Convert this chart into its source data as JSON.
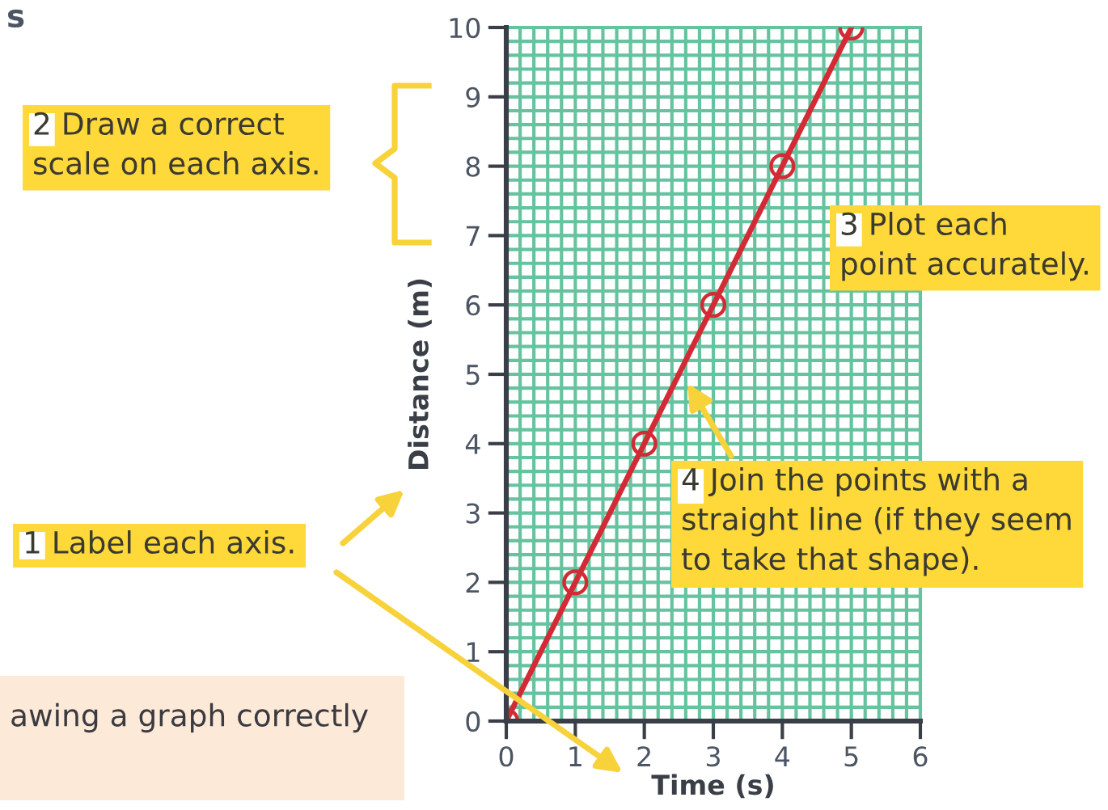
{
  "chart_data": {
    "type": "line",
    "xlabel": "Time (s)",
    "ylabel": "Distance (m)",
    "x": [
      0,
      1,
      2,
      3,
      4,
      5
    ],
    "series": [
      {
        "color": "#d42a35",
        "values": [
          0,
          2,
          4,
          6,
          8,
          10
        ]
      }
    ],
    "xlim": [
      0,
      6
    ],
    "ylim": [
      0,
      10
    ],
    "xticks": [
      0,
      1,
      2,
      3,
      4,
      5,
      6
    ],
    "yticks": [
      0,
      1,
      2,
      3,
      4,
      5,
      6,
      7,
      8,
      9,
      10
    ],
    "grid": true,
    "marker": "circle",
    "line_style": "solid",
    "annotations": [
      "s",
      "2 Draw a correct\nscale on each axis.",
      "3 Plot each\npoint accurately.",
      "1 Label each axis.",
      "4 Join the points with a\nstraight line (if they seem\nto take that shape).",
      "awing a graph correctly"
    ]
  }
}
